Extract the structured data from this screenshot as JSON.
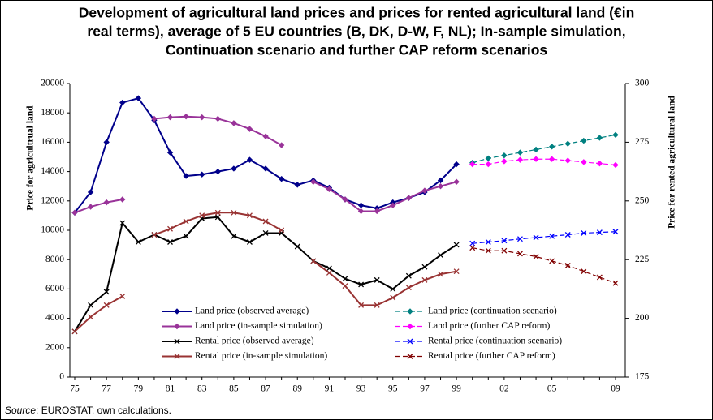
{
  "chart_data": {
    "type": "line",
    "title_lines": [
      "Development of agricultural land prices and prices for rented agricultural land (€in",
      "real terms), average of 5 EU countries (B, DK, D-W, F, NL); In-sample simulation,",
      "Continuation scenario and further CAP reform scenarios"
    ],
    "y_label": "Price for agricultrual land",
    "y2_label": "Price for rented agricultural land",
    "source_label": "Source",
    "source_text": ": EUROSTAT; own calculations.",
    "categories": [
      "75",
      null,
      "77",
      null,
      "79",
      null,
      "81",
      null,
      "83",
      null,
      "85",
      null,
      "87",
      null,
      "89",
      null,
      "91",
      null,
      "93",
      null,
      "95",
      null,
      "97",
      null,
      "99",
      null,
      null,
      "02",
      null,
      null,
      "05",
      null,
      null,
      null,
      "09"
    ],
    "ylim": [
      0,
      20000
    ],
    "yticks": [
      0,
      2000,
      4000,
      6000,
      8000,
      10000,
      12000,
      14000,
      16000,
      18000,
      20000
    ],
    "y2lim": [
      175,
      300
    ],
    "y2ticks": [
      175,
      200,
      225,
      250,
      275,
      300
    ],
    "series": [
      {
        "name": "Land price (observed average)",
        "color": "#00008b",
        "marker": "diamond",
        "dash": false,
        "values": [
          11200,
          12600,
          16000,
          18700,
          19000,
          17500,
          15300,
          13700,
          13800,
          14000,
          14200,
          14800,
          14200,
          13500,
          13100,
          13400,
          12900,
          12100,
          11700,
          11500,
          11900,
          12200,
          12600,
          13400,
          14500,
          null,
          null,
          null,
          null,
          null,
          null,
          null,
          null,
          null,
          null
        ]
      },
      {
        "name": "Land price (continuation scenario)",
        "color": "#008080",
        "marker": "diamond",
        "dash": true,
        "values": [
          null,
          null,
          null,
          null,
          null,
          null,
          null,
          null,
          null,
          null,
          null,
          null,
          null,
          null,
          null,
          null,
          null,
          null,
          null,
          null,
          null,
          null,
          null,
          null,
          null,
          14600,
          14900,
          15100,
          15300,
          15500,
          15700,
          15900,
          16100,
          16300,
          16500
        ]
      },
      {
        "name": "Land price (in-sample simulation)",
        "color": "#993399",
        "marker": "diamond",
        "dash": false,
        "values": [
          11200,
          11600,
          11900,
          12100,
          null,
          17600,
          17700,
          17750,
          17700,
          17600,
          17300,
          16900,
          16400,
          15800,
          null,
          13300,
          12800,
          12100,
          11300,
          11300,
          11700,
          12200,
          12700,
          13000,
          13300,
          null,
          null,
          null,
          null,
          null,
          null,
          null,
          null,
          null,
          null
        ]
      },
      {
        "name": "Land price (further CAP reform)",
        "color": "#ff00ff",
        "marker": "diamond",
        "dash": true,
        "values": [
          null,
          null,
          null,
          null,
          null,
          null,
          null,
          null,
          null,
          null,
          null,
          null,
          null,
          null,
          null,
          null,
          null,
          null,
          null,
          null,
          null,
          null,
          null,
          null,
          null,
          14500,
          14500,
          14700,
          14800,
          14850,
          14850,
          14750,
          14650,
          14550,
          14450
        ]
      },
      {
        "name": "Rental price (observed average)",
        "color": "#000000",
        "marker": "x",
        "dash": false,
        "axis": "y2",
        "values": [
          194.4,
          205.6,
          211.3,
          240.6,
          232.5,
          235.6,
          232.5,
          235,
          242.5,
          243.1,
          235,
          232.5,
          236.3,
          236.3,
          230.6,
          224.4,
          221.3,
          216.9,
          214.4,
          216.3,
          212.5,
          218.1,
          221.9,
          226.9,
          231.3,
          null,
          null,
          null,
          null,
          null,
          null,
          null,
          null,
          null,
          null
        ]
      },
      {
        "name": "Rental price (continuation scenario)",
        "color": "#0000ff",
        "marker": "x",
        "dash": true,
        "axis": "y2",
        "values": [
          null,
          null,
          null,
          null,
          null,
          null,
          null,
          null,
          null,
          null,
          null,
          null,
          null,
          null,
          null,
          null,
          null,
          null,
          null,
          null,
          null,
          null,
          null,
          null,
          null,
          231.9,
          232.5,
          233.1,
          233.8,
          234.4,
          235,
          235.6,
          236.3,
          236.6,
          236.9
        ]
      },
      {
        "name": "Rental price (in-sample simulation)",
        "color": "#993333",
        "marker": "x",
        "dash": false,
        "axis": "y2",
        "values": [
          194.4,
          200.6,
          205.6,
          209.4,
          null,
          235.6,
          238.1,
          241.3,
          243.8,
          245,
          245,
          243.8,
          241.3,
          237.5,
          null,
          224.4,
          219.4,
          213.8,
          205.6,
          205.6,
          208.8,
          213.1,
          216.3,
          218.8,
          220,
          null,
          null,
          null,
          null,
          null,
          null,
          null,
          null,
          null,
          null
        ]
      },
      {
        "name": "Rental price (further CAP reform)",
        "color": "#800000",
        "marker": "x",
        "dash": true,
        "axis": "y2",
        "values": [
          null,
          null,
          null,
          null,
          null,
          null,
          null,
          null,
          null,
          null,
          null,
          null,
          null,
          null,
          null,
          null,
          null,
          null,
          null,
          null,
          null,
          null,
          null,
          null,
          null,
          230,
          228.8,
          228.8,
          227.5,
          226.3,
          224.4,
          222.5,
          220,
          217.5,
          215
        ]
      }
    ]
  }
}
